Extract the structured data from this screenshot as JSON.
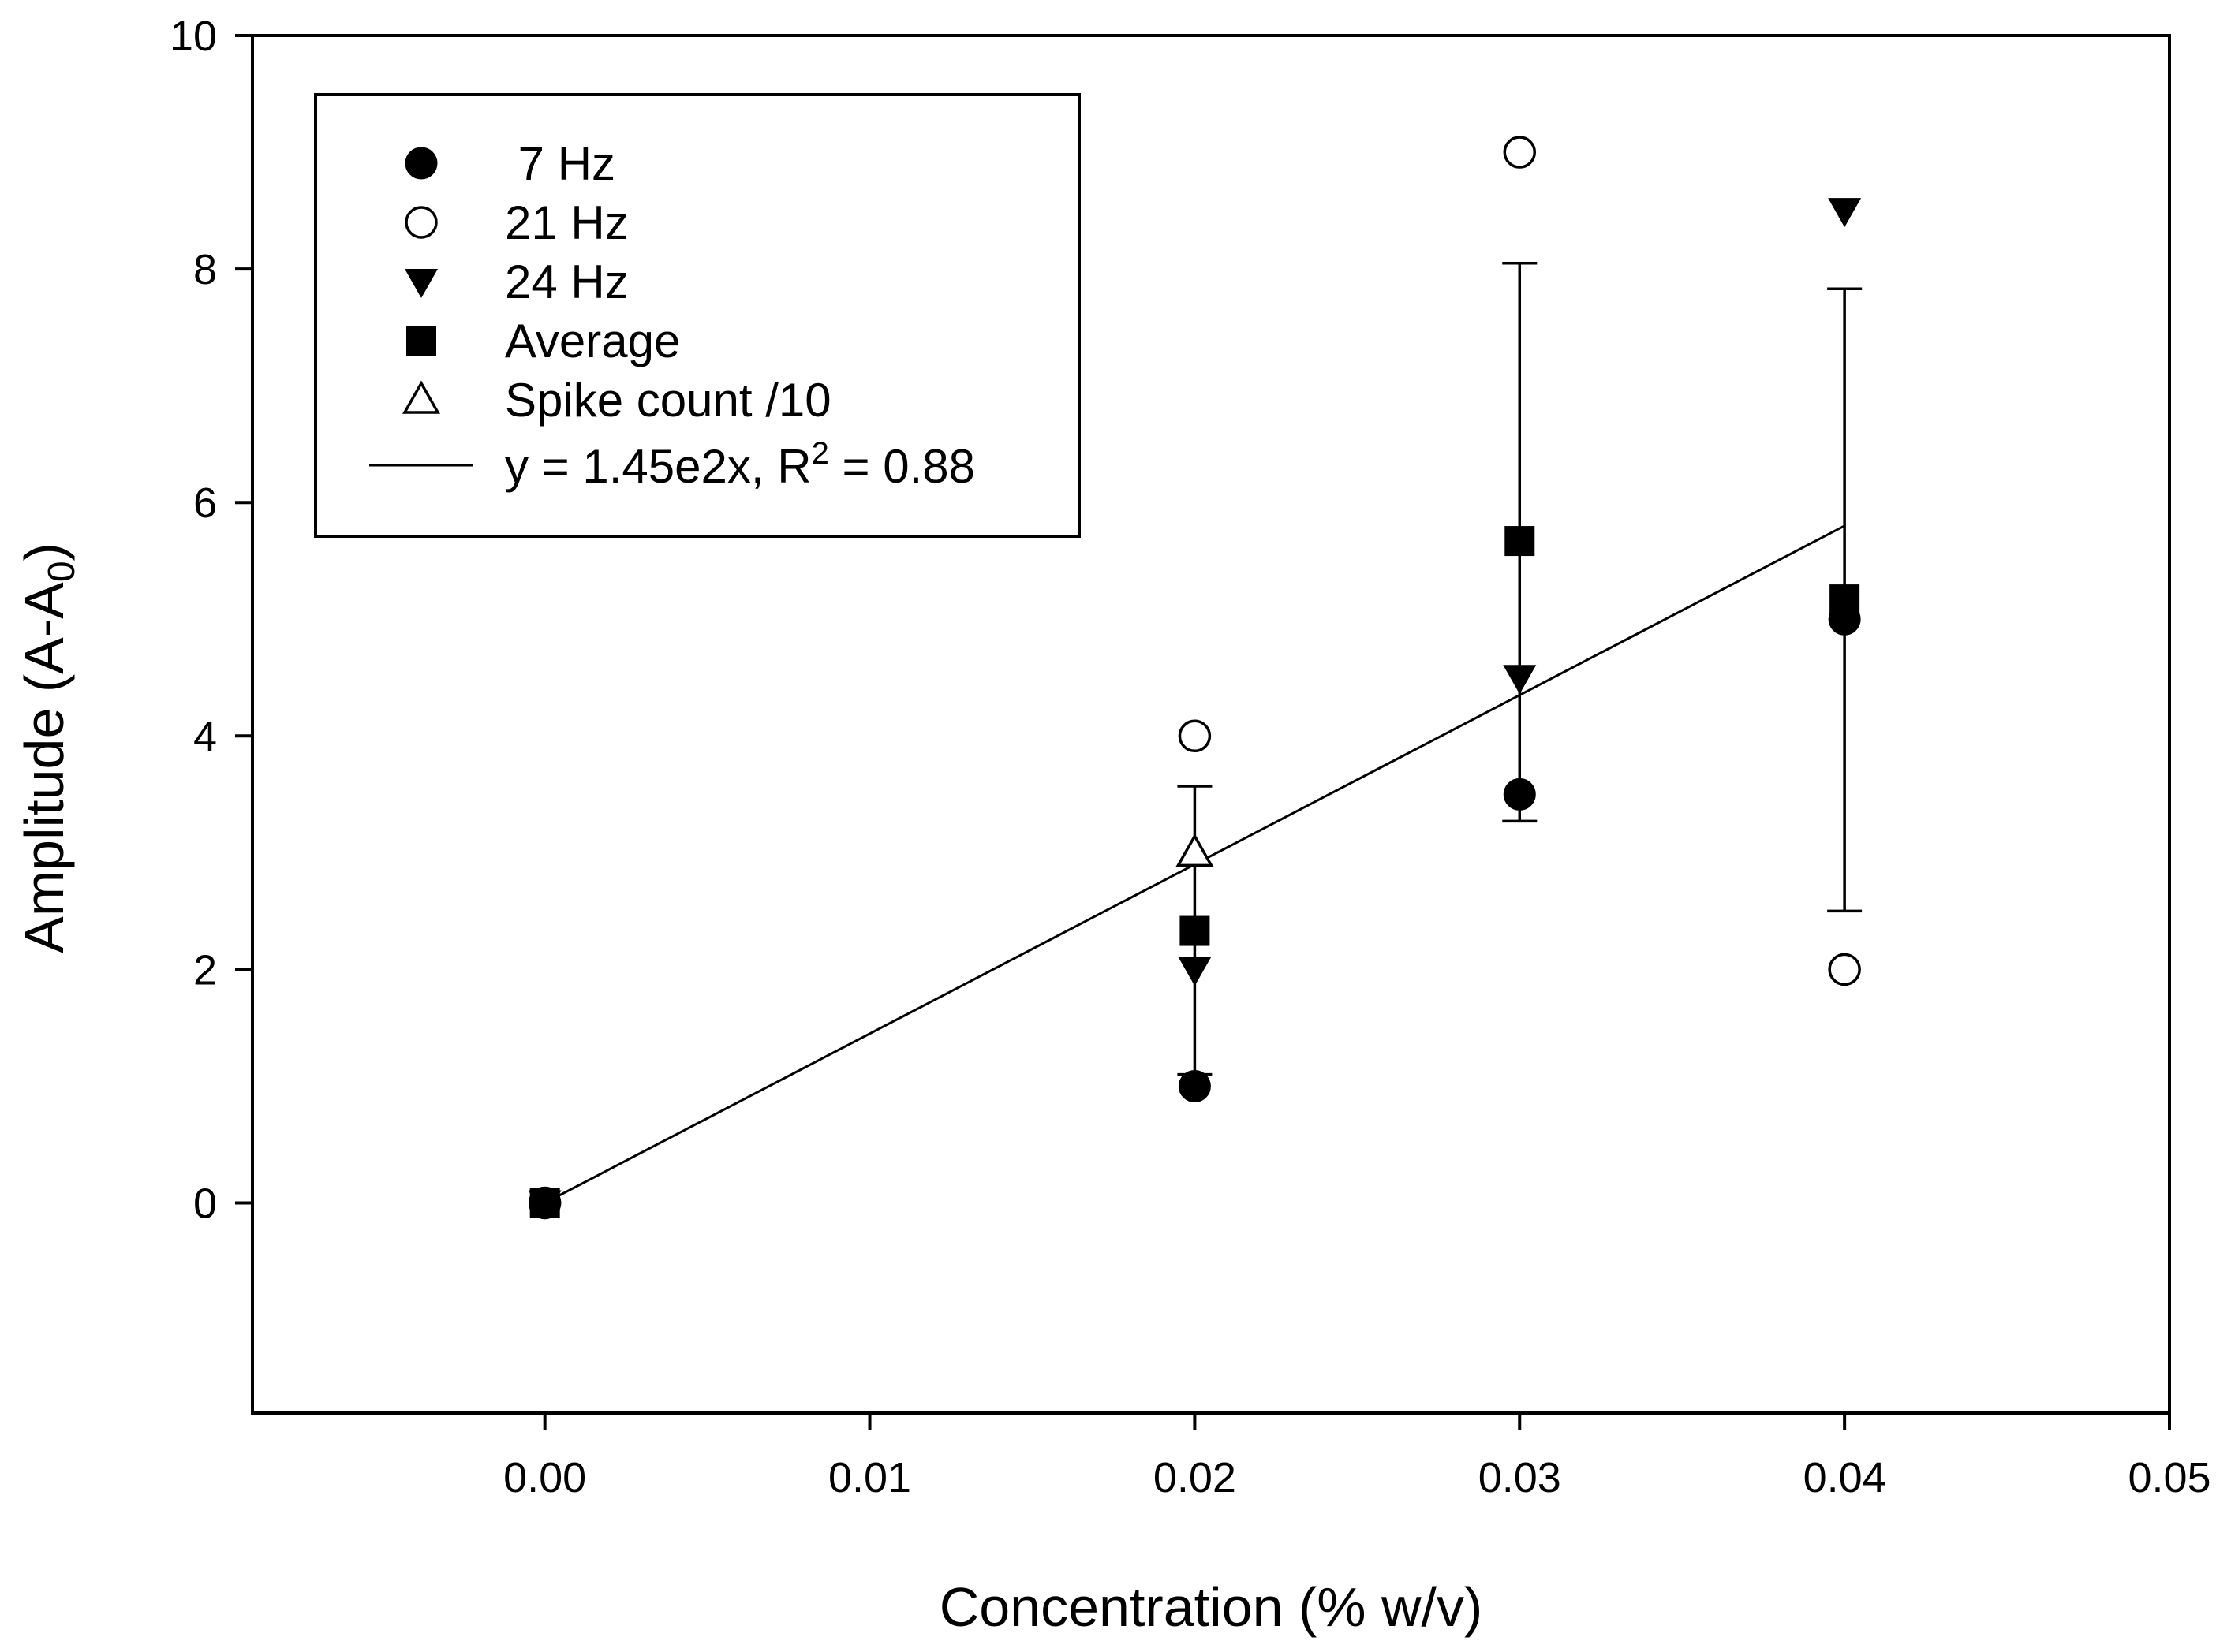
{
  "chart_data": {
    "type": "scatter",
    "title": "",
    "xlabel": "Concentration (% w/v)",
    "ylabel": "Amplitude (A-A",
    "ylabel_subscript": "0",
    "ylabel_suffix": ")",
    "xlim": [
      -0.009,
      0.05
    ],
    "ylim": [
      -1.8,
      10
    ],
    "x_ticks": [
      0.0,
      0.01,
      0.02,
      0.03,
      0.04,
      0.05
    ],
    "x_tick_labels": [
      "0.00",
      "0.01",
      "0.02",
      "0.03",
      "0.04",
      "0.05"
    ],
    "y_ticks": [
      0,
      2,
      4,
      6,
      8,
      10
    ],
    "y_tick_labels": [
      "0",
      "2",
      "4",
      "6",
      "8",
      "10"
    ],
    "grid": false,
    "legend_position": "top-left",
    "series": [
      {
        "name": " 7 Hz",
        "marker": "circle-filled",
        "x": [
          0.0,
          0.02,
          0.03,
          0.04
        ],
        "y": [
          0,
          1,
          3.5,
          5
        ]
      },
      {
        "name": "21 Hz",
        "marker": "circle-open",
        "x": [
          0.0,
          0.02,
          0.03,
          0.04
        ],
        "y": [
          0,
          4,
          9,
          2
        ]
      },
      {
        "name": "24 Hz",
        "marker": "triangle-down-filled",
        "x": [
          0.0,
          0.02,
          0.03,
          0.04
        ],
        "y": [
          0,
          2,
          4.5,
          8.5
        ]
      },
      {
        "name": "Average",
        "marker": "square-filled",
        "x": [
          0.0,
          0.02,
          0.03,
          0.04
        ],
        "y": [
          0,
          2.33,
          5.67,
          5.17
        ],
        "error_low": [
          0,
          1.1,
          3.27,
          2.5
        ],
        "error_high": [
          0,
          3.57,
          8.05,
          7.83
        ]
      },
      {
        "name": "Spike count /10",
        "marker": "triangle-up-open",
        "x": [
          0.02
        ],
        "y": [
          3.0
        ]
      }
    ],
    "fit": {
      "label": "y = 1.45e2x, R",
      "label_superscript": "2",
      "label_suffix": " = 0.88",
      "slope": 145,
      "x_range": [
        0.0,
        0.04
      ]
    }
  }
}
